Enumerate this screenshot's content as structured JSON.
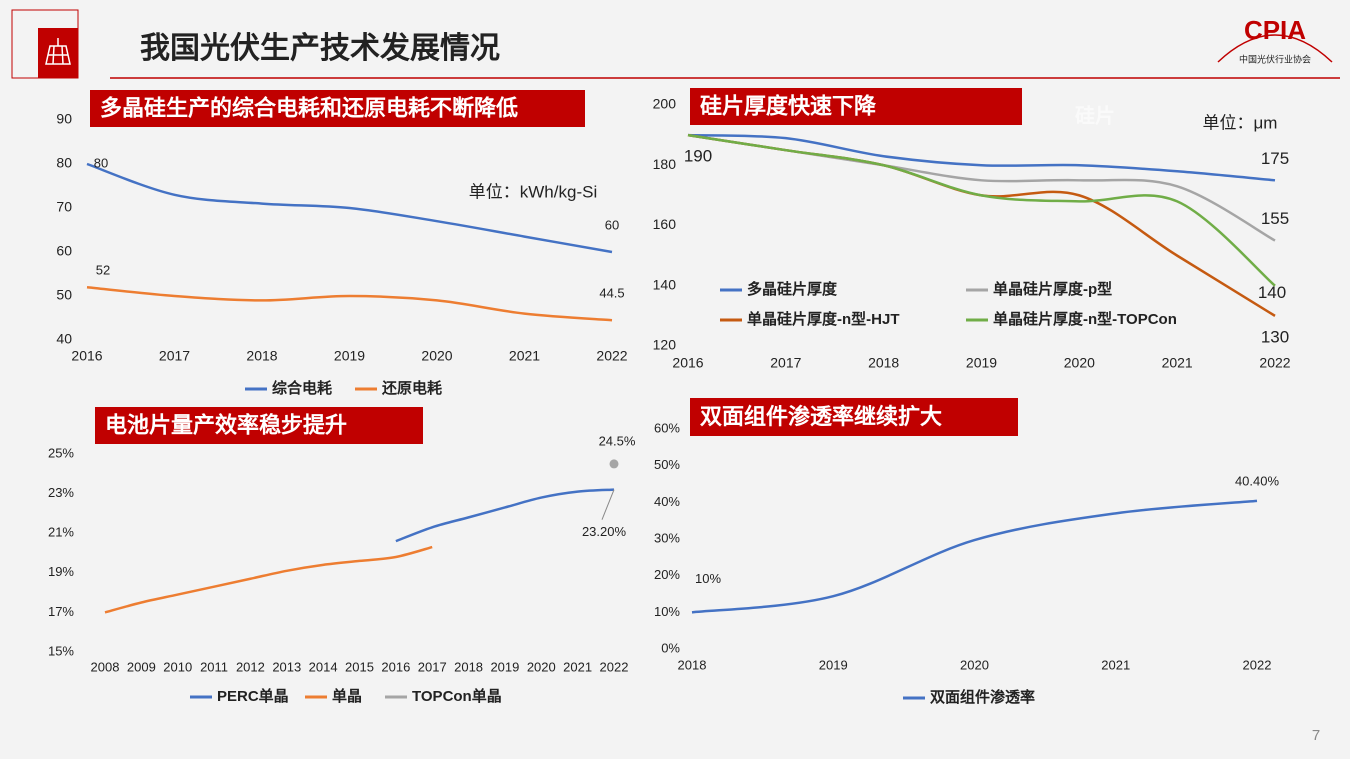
{
  "header": {
    "title": "我国光伏生产技术发展情况"
  },
  "logo": {
    "text": "CPIA",
    "subtitle": "中国光伏行业协会"
  },
  "page_number": "7",
  "chart_data": [
    {
      "type": "line",
      "title": "多晶硅生产的综合电耗和还原电耗不断降低",
      "unit": "单位：kWh/kg-Si",
      "categories": [
        "2016",
        "2017",
        "2018",
        "2019",
        "2020",
        "2021",
        "2022"
      ],
      "series": [
        {
          "name": "综合电耗",
          "color": "#4472c4",
          "values": [
            80,
            73,
            71,
            70,
            67,
            63.5,
            60
          ],
          "value_labels": [
            "80",
            null,
            null,
            null,
            null,
            null,
            "60"
          ]
        },
        {
          "name": "还原电耗",
          "color": "#ed7d31",
          "values": [
            52,
            50,
            49,
            50,
            49,
            46,
            44.5
          ],
          "value_labels": [
            "52",
            null,
            null,
            null,
            null,
            null,
            "44.5"
          ]
        }
      ],
      "ylim": [
        40,
        90
      ],
      "yticks": [
        40,
        50,
        60,
        70,
        80,
        90
      ],
      "grid": false,
      "legend": "bottom"
    },
    {
      "type": "line",
      "title": "硅片厚度快速下降",
      "unit": "单位：μm",
      "watermark": "硅片",
      "categories": [
        "2016",
        "2017",
        "2018",
        "2019",
        "2020",
        "2021",
        "2022"
      ],
      "series": [
        {
          "name": "多晶硅片厚度",
          "color": "#4472c4",
          "values": [
            190,
            189,
            183,
            180,
            180,
            178,
            175
          ],
          "value_labels": [
            "190",
            null,
            null,
            null,
            null,
            null,
            "175"
          ]
        },
        {
          "name": "单晶硅片厚度-p型",
          "color": "#a5a5a5",
          "values": [
            190,
            185,
            180,
            175,
            175,
            173,
            155
          ],
          "value_labels": [
            null,
            null,
            null,
            null,
            null,
            null,
            "155"
          ]
        },
        {
          "name": "单晶硅片厚度-n型-HJT",
          "color": "#c55a11",
          "values": [
            190,
            185,
            180,
            170,
            170,
            150,
            130
          ],
          "value_labels": [
            null,
            null,
            null,
            null,
            null,
            null,
            "130"
          ]
        },
        {
          "name": "单晶硅片厚度-n型-TOPCon",
          "color": "#70ad47",
          "values": [
            190,
            185,
            180,
            170,
            168,
            168,
            140
          ],
          "value_labels": [
            null,
            null,
            null,
            null,
            null,
            null,
            "140"
          ]
        }
      ],
      "ylim": [
        120,
        200
      ],
      "yticks": [
        120,
        140,
        160,
        180,
        200
      ],
      "grid": false,
      "legend": "center"
    },
    {
      "type": "line",
      "title": "电池片量产效率稳步提升",
      "categories": [
        "2008",
        "2009",
        "2010",
        "2011",
        "2012",
        "2013",
        "2014",
        "2015",
        "2016",
        "2017",
        "2018",
        "2019",
        "2020",
        "2021",
        "2022"
      ],
      "series": [
        {
          "name": "PERC单晶",
          "color": "#4472c4",
          "values": [
            null,
            null,
            null,
            null,
            null,
            null,
            null,
            null,
            20.6,
            21.3,
            21.8,
            22.3,
            22.8,
            23.1,
            23.2
          ],
          "value_labels": [
            null,
            null,
            null,
            null,
            null,
            null,
            null,
            null,
            null,
            null,
            null,
            null,
            null,
            null,
            "23.20%"
          ]
        },
        {
          "name": "单晶",
          "color": "#ed7d31",
          "values": [
            17,
            17.5,
            17.9,
            18.3,
            18.7,
            19.1,
            19.4,
            19.6,
            19.8,
            20.3,
            null,
            null,
            null,
            null,
            null
          ]
        },
        {
          "name": "TOPCon单晶",
          "color": "#a5a5a5",
          "values": [
            null,
            null,
            null,
            null,
            null,
            null,
            null,
            null,
            null,
            null,
            null,
            null,
            null,
            null,
            24.5
          ],
          "value_labels": [
            null,
            null,
            null,
            null,
            null,
            null,
            null,
            null,
            null,
            null,
            null,
            null,
            null,
            null,
            "24.5%"
          ]
        }
      ],
      "ylim": [
        15,
        25
      ],
      "yticks": [
        {
          "value": 15,
          "label": "15%"
        },
        {
          "value": 17,
          "label": "17%"
        },
        {
          "value": 19,
          "label": "19%"
        },
        {
          "value": 21,
          "label": "21%"
        },
        {
          "value": 23,
          "label": "23%"
        },
        {
          "value": 25,
          "label": "25%"
        }
      ],
      "grid": false,
      "legend": "bottom"
    },
    {
      "type": "line",
      "title": "双面组件渗透率继续扩大",
      "categories": [
        "2018",
        "2019",
        "2020",
        "2021",
        "2022"
      ],
      "series": [
        {
          "name": "双面组件渗透率",
          "color": "#4472c4",
          "values": [
            10,
            14.4,
            29.7,
            37,
            40.4
          ],
          "value_labels": [
            "10%",
            null,
            null,
            null,
            "40.40%"
          ]
        }
      ],
      "ylim": [
        0,
        60
      ],
      "yticks": [
        {
          "value": 0,
          "label": "0%"
        },
        {
          "value": 10,
          "label": "10%"
        },
        {
          "value": 20,
          "label": "20%"
        },
        {
          "value": 30,
          "label": "30%"
        },
        {
          "value": 40,
          "label": "40%"
        },
        {
          "value": 50,
          "label": "50%"
        },
        {
          "value": 60,
          "label": "60%"
        }
      ],
      "grid": false,
      "legend": "bottom"
    }
  ]
}
